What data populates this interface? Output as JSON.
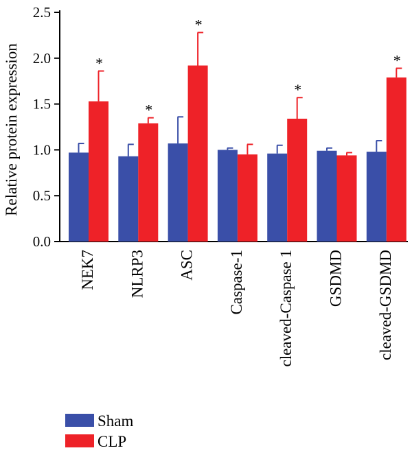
{
  "chart_data": {
    "type": "bar",
    "title": "",
    "xlabel": "",
    "ylabel": "Relative protein expression",
    "ylim": [
      0,
      2.5
    ],
    "yticks": [
      "0.0",
      "0.5",
      "1.0",
      "1.5",
      "2.0",
      "2.5"
    ],
    "ytick_values": [
      0,
      0.5,
      1.0,
      1.5,
      2.0,
      2.5
    ],
    "grid": false,
    "legend_position": "bottom-left",
    "categories": [
      "NEK7",
      "NLRP3",
      "ASC",
      "Caspase-1",
      "cleaved-Caspase 1",
      "GSDMD",
      "cleaved-GSDMD"
    ],
    "series": [
      {
        "name": "Sham",
        "color": "#3a4fa8",
        "values": [
          0.97,
          0.93,
          1.07,
          1.0,
          0.96,
          0.99,
          0.98
        ],
        "errors": [
          0.1,
          0.13,
          0.29,
          0.02,
          0.09,
          0.03,
          0.12
        ]
      },
      {
        "name": "CLP",
        "color": "#ee2228",
        "values": [
          1.53,
          1.29,
          1.92,
          0.95,
          1.34,
          0.94,
          1.79
        ],
        "errors": [
          0.33,
          0.06,
          0.36,
          0.11,
          0.23,
          0.03,
          0.1
        ]
      }
    ],
    "annotations": [
      {
        "category": "NEK7",
        "series": "CLP",
        "text": "*"
      },
      {
        "category": "NLRP3",
        "series": "CLP",
        "text": "*"
      },
      {
        "category": "ASC",
        "series": "CLP",
        "text": "*"
      },
      {
        "category": "cleaved-Caspase 1",
        "series": "CLP",
        "text": "*"
      },
      {
        "category": "cleaved-GSDMD",
        "series": "CLP",
        "text": "*"
      }
    ]
  }
}
